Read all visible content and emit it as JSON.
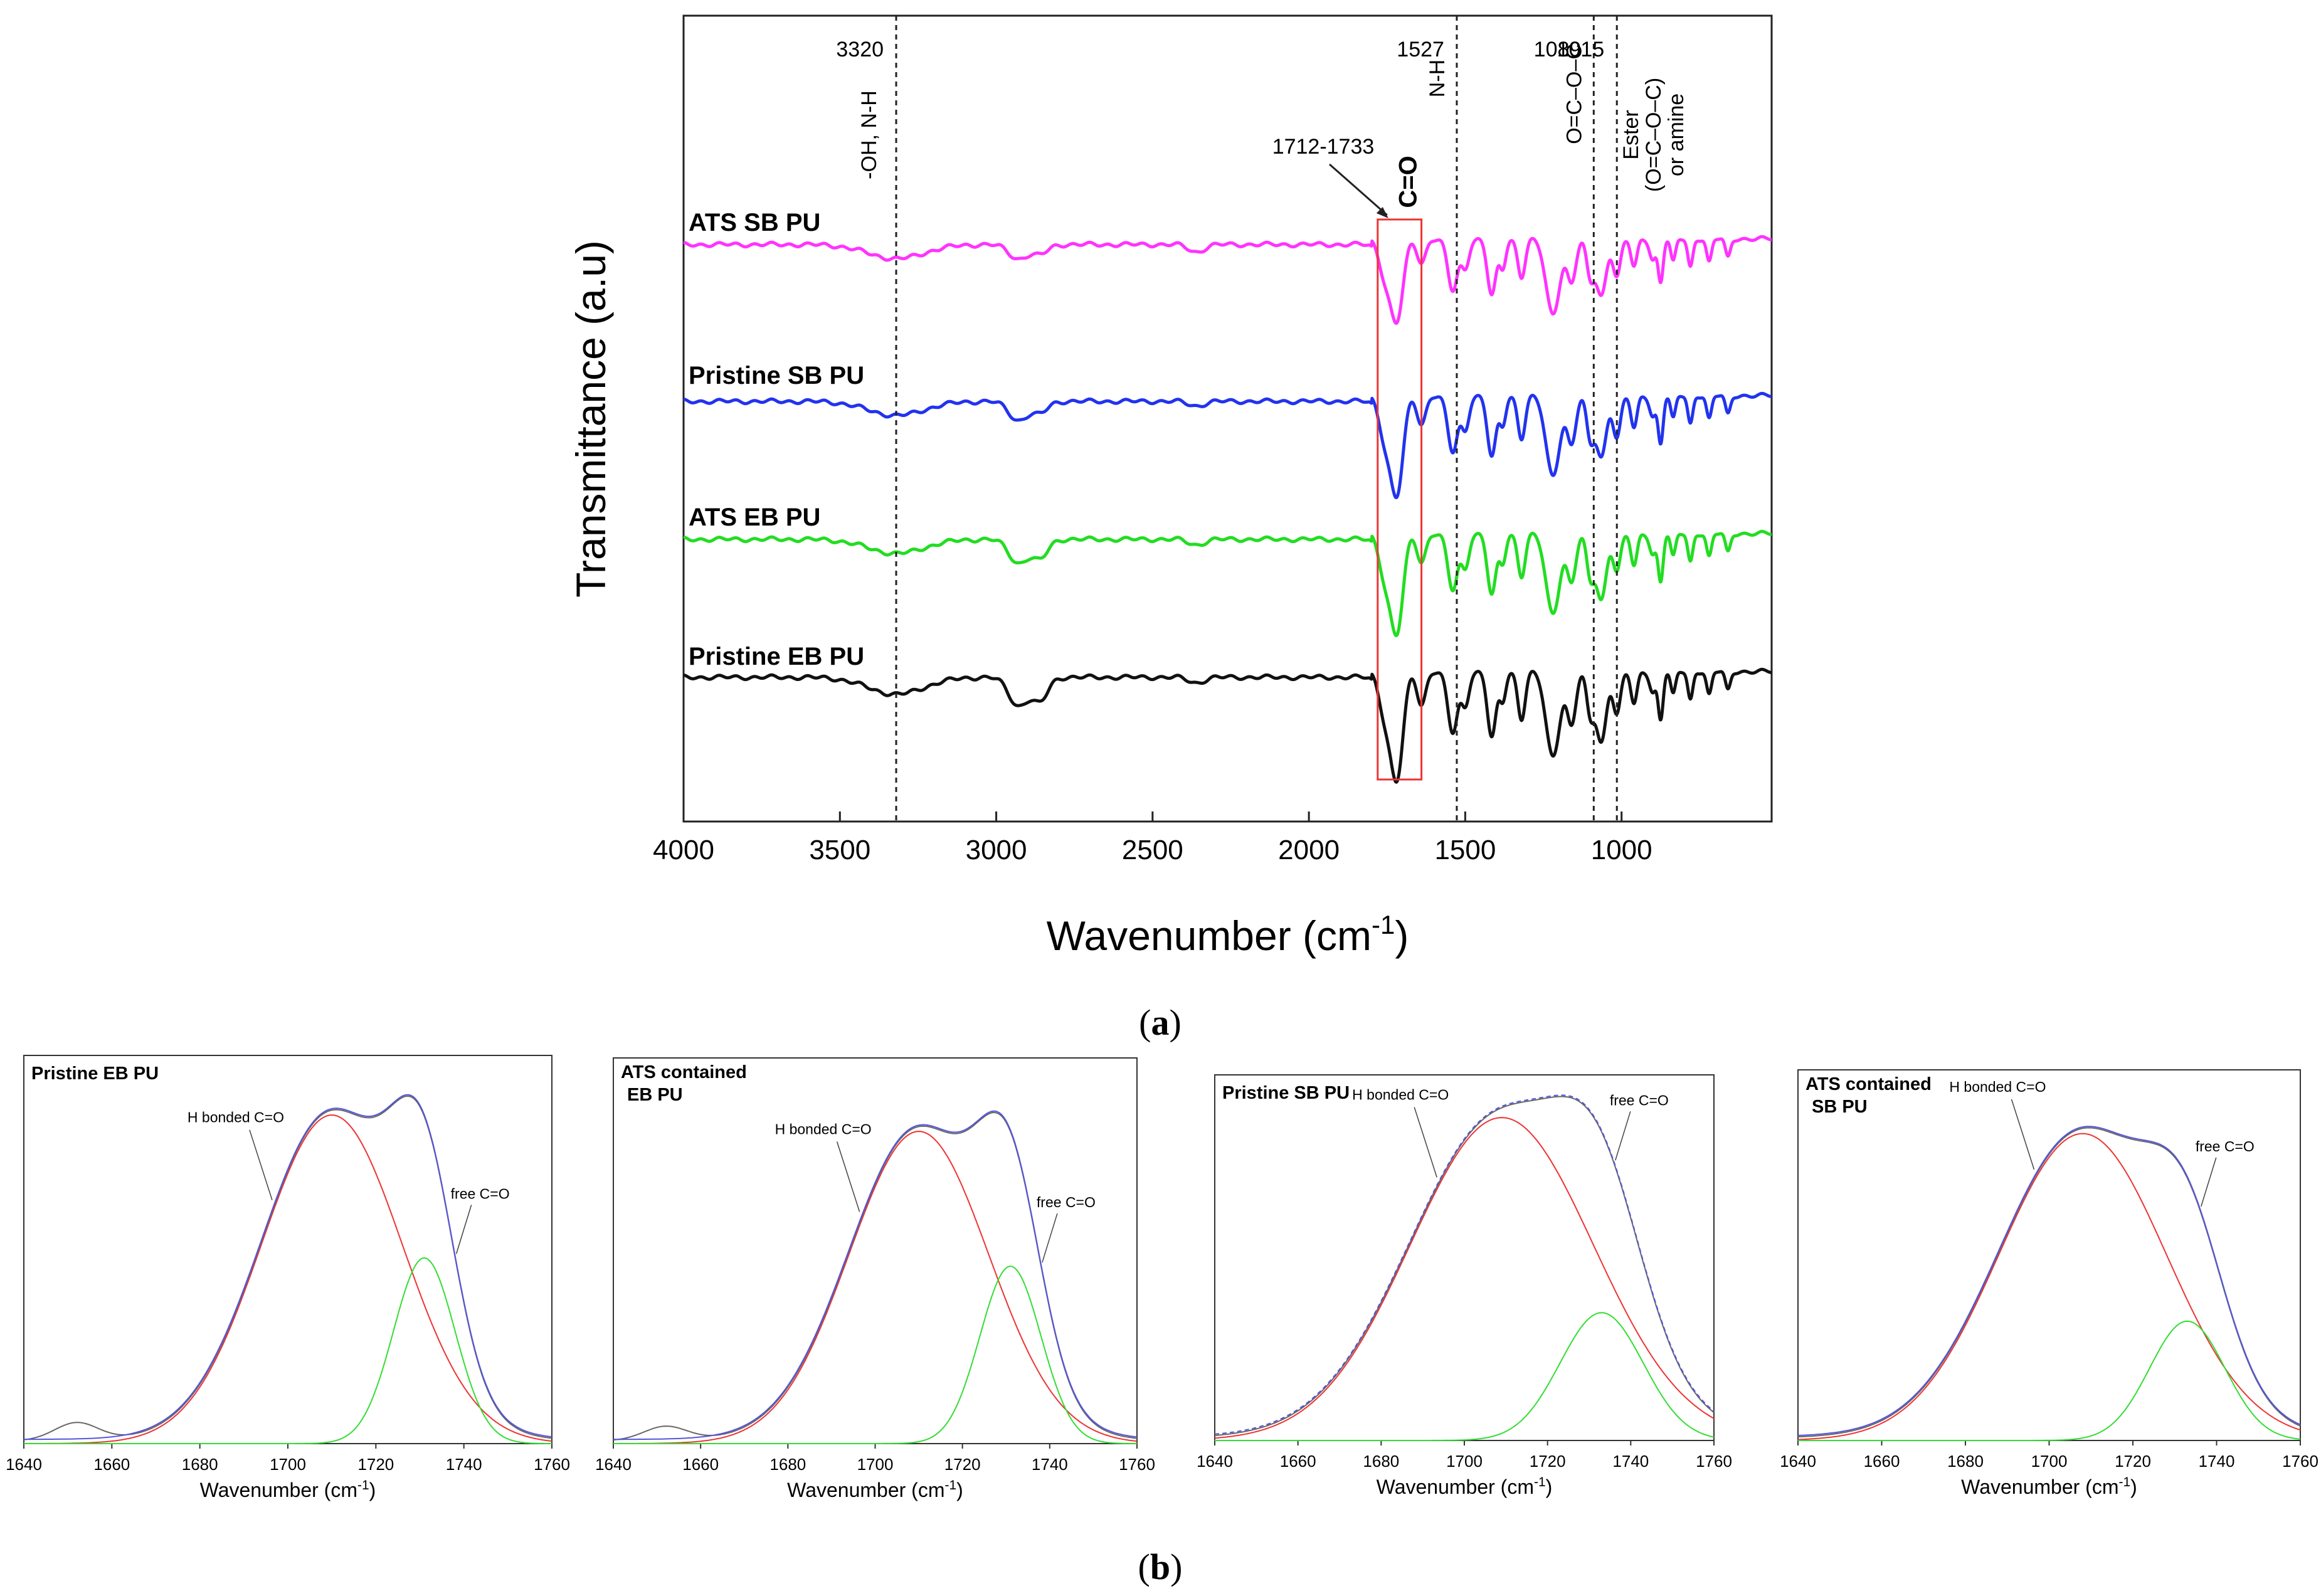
{
  "chart_data": [
    {
      "id": "a",
      "type": "line",
      "panel_label": "(a)",
      "panel_letter": "a",
      "xlabel": "Wavenumber (cm-1)",
      "xlabel_parts": {
        "base": "Wavenumber (cm",
        "sup": "-1",
        "close": ")"
      },
      "ylabel": "Transmittance (a.u)",
      "xlim": [
        4000,
        520
      ],
      "x_ticks": [
        4000,
        3500,
        3000,
        2500,
        2000,
        1500,
        1000
      ],
      "series": [
        {
          "name": "ATS SB PU",
          "color": "#ff33ff",
          "offset": 0,
          "peaks": [
            [
              3320,
              0.15,
              90
            ],
            [
              2930,
              0.15,
              30
            ],
            [
              2860,
              0.1,
              25
            ],
            [
              2360,
              0.08,
              25
            ],
            [
              1760,
              0.3,
              18
            ],
            [
              1728,
              0.5,
              20
            ],
            [
              1712,
              0.45,
              18
            ],
            [
              1640,
              0.25,
              14
            ],
            [
              1540,
              0.55,
              16
            ],
            [
              1500,
              0.3,
              12
            ],
            [
              1415,
              0.6,
              14
            ],
            [
              1380,
              0.3,
              10
            ],
            [
              1320,
              0.4,
              12
            ],
            [
              1220,
              0.8,
              22
            ],
            [
              1160,
              0.45,
              14
            ],
            [
              1100,
              0.4,
              12
            ],
            [
              1065,
              0.6,
              16
            ],
            [
              1015,
              0.4,
              12
            ],
            [
              960,
              0.3,
              10
            ],
            [
              900,
              0.22,
              10
            ],
            [
              875,
              0.45,
              8
            ],
            [
              835,
              0.25,
              8
            ],
            [
              780,
              0.3,
              8
            ],
            [
              720,
              0.25,
              8
            ],
            [
              660,
              0.2,
              8
            ]
          ]
        },
        {
          "name": "Pristine SB PU",
          "color": "#2233ee",
          "offset": 1,
          "peaks": [
            [
              3320,
              0.15,
              90
            ],
            [
              2930,
              0.2,
              30
            ],
            [
              2860,
              0.12,
              25
            ],
            [
              2360,
              0.05,
              25
            ],
            [
              1760,
              0.35,
              18
            ],
            [
              1728,
              0.6,
              20
            ],
            [
              1712,
              0.55,
              18
            ],
            [
              1640,
              0.3,
              14
            ],
            [
              1540,
              0.6,
              16
            ],
            [
              1500,
              0.35,
              12
            ],
            [
              1415,
              0.65,
              14
            ],
            [
              1380,
              0.3,
              10
            ],
            [
              1320,
              0.45,
              12
            ],
            [
              1220,
              0.85,
              22
            ],
            [
              1160,
              0.5,
              14
            ],
            [
              1100,
              0.45,
              12
            ],
            [
              1065,
              0.65,
              16
            ],
            [
              1015,
              0.45,
              12
            ],
            [
              960,
              0.35,
              10
            ],
            [
              900,
              0.22,
              10
            ],
            [
              875,
              0.5,
              8
            ],
            [
              835,
              0.25,
              8
            ],
            [
              780,
              0.3,
              8
            ],
            [
              720,
              0.25,
              8
            ],
            [
              660,
              0.2,
              8
            ]
          ]
        },
        {
          "name": "ATS EB PU",
          "color": "#22dd22",
          "offset": 2,
          "peaks": [
            [
              3320,
              0.15,
              90
            ],
            [
              2930,
              0.25,
              30
            ],
            [
              2860,
              0.2,
              25
            ],
            [
              2360,
              0.06,
              25
            ],
            [
              1760,
              0.35,
              18
            ],
            [
              1728,
              0.6,
              20
            ],
            [
              1712,
              0.55,
              18
            ],
            [
              1640,
              0.3,
              14
            ],
            [
              1540,
              0.6,
              16
            ],
            [
              1500,
              0.35,
              12
            ],
            [
              1415,
              0.65,
              14
            ],
            [
              1380,
              0.3,
              10
            ],
            [
              1320,
              0.45,
              12
            ],
            [
              1220,
              0.85,
              22
            ],
            [
              1160,
              0.5,
              14
            ],
            [
              1100,
              0.45,
              12
            ],
            [
              1065,
              0.7,
              16
            ],
            [
              1015,
              0.4,
              12
            ],
            [
              960,
              0.35,
              10
            ],
            [
              900,
              0.22,
              10
            ],
            [
              875,
              0.5,
              8
            ],
            [
              835,
              0.25,
              8
            ],
            [
              780,
              0.3,
              8
            ],
            [
              720,
              0.25,
              8
            ],
            [
              660,
              0.2,
              8
            ]
          ]
        },
        {
          "name": "Pristine EB PU",
          "color": "#111111",
          "offset": 3,
          "peaks": [
            [
              3320,
              0.18,
              90
            ],
            [
              2930,
              0.3,
              30
            ],
            [
              2860,
              0.25,
              25
            ],
            [
              2360,
              0.06,
              25
            ],
            [
              1760,
              0.35,
              18
            ],
            [
              1728,
              0.65,
              20
            ],
            [
              1712,
              0.6,
              18
            ],
            [
              1640,
              0.35,
              14
            ],
            [
              1540,
              0.65,
              16
            ],
            [
              1500,
              0.35,
              12
            ],
            [
              1415,
              0.7,
              14
            ],
            [
              1380,
              0.3,
              10
            ],
            [
              1320,
              0.5,
              12
            ],
            [
              1220,
              0.9,
              22
            ],
            [
              1160,
              0.55,
              14
            ],
            [
              1100,
              0.45,
              12
            ],
            [
              1065,
              0.75,
              16
            ],
            [
              1015,
              0.45,
              12
            ],
            [
              960,
              0.35,
              10
            ],
            [
              900,
              0.22,
              10
            ],
            [
              875,
              0.5,
              8
            ],
            [
              835,
              0.25,
              8
            ],
            [
              780,
              0.3,
              8
            ],
            [
              720,
              0.25,
              8
            ],
            [
              660,
              0.2,
              8
            ]
          ]
        }
      ],
      "vlines": [
        {
          "x": 3320,
          "label": "3320",
          "desc": "-OH, N-H"
        },
        {
          "x": 1527,
          "label": "1527",
          "desc": "N-H"
        },
        {
          "x": 1089,
          "label": "1089",
          "desc": "O=C–O–C"
        },
        {
          "x": 1015,
          "label": "1015",
          "desc_lines": [
            "Ester",
            "(O=C–O–C)",
            "or amine"
          ]
        }
      ],
      "highlight": {
        "x_range": [
          1780,
          1640
        ],
        "range_label": "1712-1733",
        "label": "C=O"
      }
    },
    {
      "id": "b1",
      "type": "line",
      "title": "Pristine EB PU",
      "xlabel": "Wavenumber (cm-1)",
      "xlabel_parts": {
        "base": "Wavenumber (cm",
        "sup": "-1",
        "close": ")"
      },
      "xlim": [
        1640,
        1760
      ],
      "ylim": [
        0,
        1
      ],
      "x_ticks": [
        1640,
        1660,
        1680,
        1700,
        1720,
        1740,
        1760
      ],
      "components": [
        {
          "name": "H bonded C=O",
          "color": "#ee3333",
          "center": 1710,
          "amp": 0.92,
          "width": 16
        },
        {
          "name": "free C=O",
          "color": "#33dd33",
          "center": 1731,
          "amp": 0.52,
          "width": 7
        }
      ],
      "annotations": [
        {
          "text": "H bonded C=O",
          "x": 1697
        },
        {
          "text": "free C=O",
          "x": 1738
        }
      ],
      "hump": {
        "center": 1652,
        "amp": 0.05,
        "width": 5
      }
    },
    {
      "id": "b2",
      "type": "line",
      "title_lines": [
        "ATS contained",
        "EB PU"
      ],
      "xlabel": "Wavenumber (cm-1)",
      "xlabel_parts": {
        "base": "Wavenumber (cm",
        "sup": "-1",
        "close": ")"
      },
      "xlim": [
        1640,
        1760
      ],
      "ylim": [
        0,
        1
      ],
      "x_ticks": [
        1640,
        1660,
        1680,
        1700,
        1720,
        1740,
        1760
      ],
      "components": [
        {
          "name": "H bonded C=O",
          "color": "#ee3333",
          "center": 1710,
          "amp": 0.88,
          "width": 16
        },
        {
          "name": "free C=O",
          "color": "#33dd33",
          "center": 1731,
          "amp": 0.5,
          "width": 7
        }
      ],
      "annotations": [
        {
          "text": "H bonded C=O",
          "x": 1697
        },
        {
          "text": "free C=O",
          "x": 1738
        }
      ],
      "hump": {
        "center": 1652,
        "amp": 0.04,
        "width": 5
      }
    },
    {
      "id": "b3",
      "type": "line",
      "title": "Pristine SB PU",
      "xlabel": "Wavenumber (cm-1)",
      "xlabel_parts": {
        "base": "Wavenumber (cm",
        "sup": "-1",
        "close": ")"
      },
      "xlim": [
        1640,
        1760
      ],
      "ylim": [
        0,
        1
      ],
      "x_ticks": [
        1640,
        1660,
        1680,
        1700,
        1720,
        1740,
        1760
      ],
      "components": [
        {
          "name": "H bonded C=O",
          "color": "#ee3333",
          "center": 1709,
          "amp": 0.96,
          "width": 22
        },
        {
          "name": "free C=O",
          "color": "#33dd33",
          "center": 1733,
          "amp": 0.38,
          "width": 10
        }
      ],
      "annotations": [
        {
          "text": "H bonded C=O",
          "x": 1694
        },
        {
          "text": "free C=O",
          "x": 1736
        }
      ]
    },
    {
      "id": "b4",
      "type": "line",
      "title_lines": [
        "ATS contained",
        "SB PU"
      ],
      "xlabel": "Wavenumber (cm-1)",
      "xlabel_parts": {
        "base": "Wavenumber (cm",
        "sup": "-1",
        "close": ")"
      },
      "xlim": [
        1640,
        1760
      ],
      "ylim": [
        0,
        1
      ],
      "x_ticks": [
        1640,
        1660,
        1680,
        1700,
        1720,
        1740,
        1760
      ],
      "components": [
        {
          "name": "H bonded C=O",
          "color": "#ee3333",
          "center": 1708,
          "amp": 0.9,
          "width": 20
        },
        {
          "name": "free C=O",
          "color": "#33dd33",
          "center": 1733,
          "amp": 0.35,
          "width": 9
        }
      ],
      "annotations": [
        {
          "text": "H bonded C=O",
          "x": 1697
        },
        {
          "text": "free C=O",
          "x": 1736
        }
      ]
    }
  ],
  "panel_b_label": "(b)",
  "panel_b_letter": "b"
}
